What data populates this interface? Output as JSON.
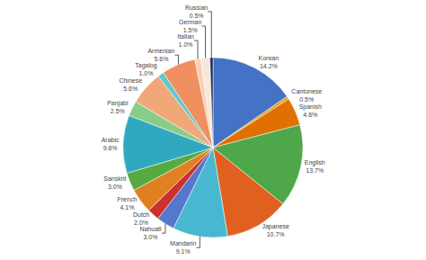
{
  "chart_data": {
    "type": "pie",
    "categories": [
      "Korean",
      "Cantonese",
      "Spanish",
      "English",
      "Japanese",
      "Mandarin",
      "Nahuatl",
      "Dutch",
      "French",
      "Sanskrit",
      "Arabic",
      "Panjabi",
      "Chinese",
      "Tagalog",
      "Armenian",
      "Italian",
      "German",
      "Russian"
    ],
    "values": [
      14.2,
      0.5,
      4.6,
      13.7,
      10.7,
      9.1,
      3.0,
      2.0,
      4.1,
      3.0,
      9.6,
      2.5,
      5.6,
      1.0,
      5.6,
      1.0,
      1.5,
      0.5
    ],
    "value_labels": [
      "14.2%",
      "0.5%",
      "4.6%",
      "13.7%",
      "10.7%",
      "9.1%",
      "3.0%",
      "2.0%",
      "4.1%",
      "3.0%",
      "9.6%",
      "2.5%",
      "5.6%",
      "1.0%",
      "5.6%",
      "1.0%",
      "1.5%",
      "0.5%"
    ],
    "colors": [
      "#4472C4",
      "#E8A020",
      "#E07000",
      "#4EA84A",
      "#E06020",
      "#47B8D0",
      "#5577CC",
      "#CC3030",
      "#E08020",
      "#55AA40",
      "#30A8C0",
      "#88CC88",
      "#F0A878",
      "#60C8C8",
      "#F09060",
      "#F8D0B8",
      "#F8E8D8",
      "#1A2E5A"
    ]
  }
}
